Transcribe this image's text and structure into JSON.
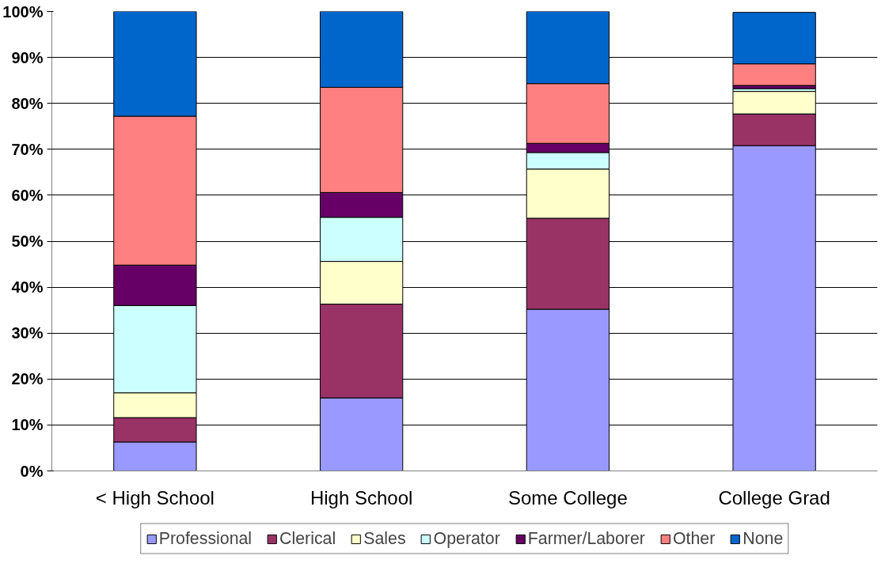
{
  "chart_data": {
    "type": "bar",
    "stacked": true,
    "categories": [
      "< High School",
      "High School",
      "Some College",
      "College Grad"
    ],
    "series": [
      {
        "name": "Professional",
        "color": "#9999ff",
        "values": [
          6.3,
          15.9,
          35.2,
          70.8
        ]
      },
      {
        "name": "Clerical",
        "color": "#993366",
        "values": [
          5.3,
          20.4,
          19.8,
          6.9
        ]
      },
      {
        "name": "Sales",
        "color": "#ffffcc",
        "values": [
          5.4,
          9.3,
          10.7,
          4.9
        ]
      },
      {
        "name": "Operator",
        "color": "#ccffff",
        "values": [
          19.0,
          9.6,
          3.6,
          0.6
        ]
      },
      {
        "name": "Farmer/Laborer",
        "color": "#660066",
        "values": [
          8.8,
          5.4,
          2.0,
          0.7
        ]
      },
      {
        "name": "Other",
        "color": "#ff8080",
        "values": [
          32.4,
          22.9,
          13.0,
          4.7
        ]
      },
      {
        "name": "None",
        "color": "#0066cc",
        "values": [
          22.8,
          16.5,
          15.7,
          11.2
        ]
      }
    ],
    "ylim": [
      0,
      100
    ],
    "yticks": [
      {
        "value": 0,
        "label": "0%"
      },
      {
        "value": 10,
        "label": "10%"
      },
      {
        "value": 20,
        "label": "20%"
      },
      {
        "value": 30,
        "label": "30%"
      },
      {
        "value": 40,
        "label": "40%"
      },
      {
        "value": 50,
        "label": "50%"
      },
      {
        "value": 60,
        "label": "60%"
      },
      {
        "value": 70,
        "label": "70%"
      },
      {
        "value": 80,
        "label": "80%"
      },
      {
        "value": 90,
        "label": "90%"
      },
      {
        "value": 100,
        "label": "100%"
      }
    ],
    "grid": "y",
    "legend": "bottom"
  }
}
